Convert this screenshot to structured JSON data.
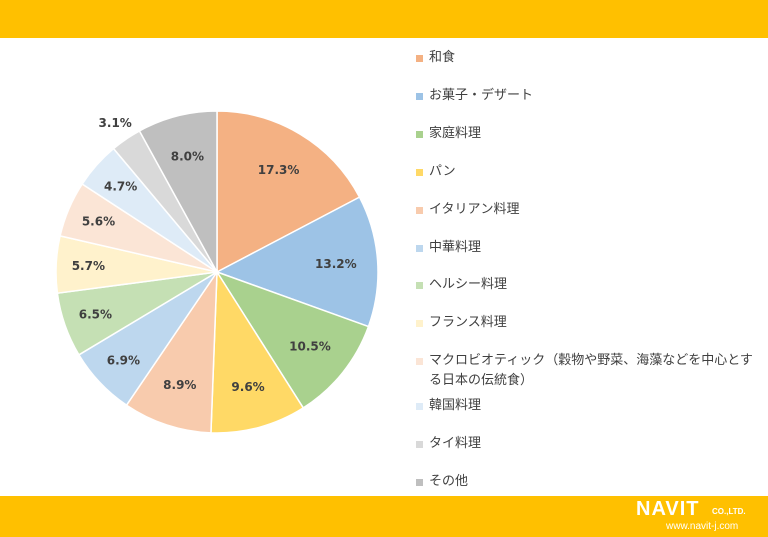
{
  "chart_data": {
    "type": "pie",
    "title": "",
    "legend_position": "right",
    "categories": [
      "和食",
      "お菓子・デザート",
      "家庭料理",
      "パン",
      "イタリアン料理",
      "中華料理",
      "ヘルシー料理",
      "フランス料理",
      "マクロビオティック（穀物や野菜、海藻などを中心とする日本の伝統食）",
      "韓国料理",
      "タイ料理",
      "その他"
    ],
    "values": [
      17.3,
      13.2,
      10.5,
      9.6,
      8.9,
      6.9,
      6.5,
      5.7,
      5.6,
      4.7,
      3.1,
      8.0
    ],
    "labels": [
      "17.3%",
      "13.2%",
      "10.5%",
      "9.6%",
      "8.9%",
      "6.9%",
      "6.5%",
      "5.7%",
      "5.6%",
      "4.7%",
      "3.1%",
      "8.0%"
    ],
    "colors": [
      "#F4B183",
      "#9DC3E6",
      "#A9D18E",
      "#FFD966",
      "#F8CBAD",
      "#BDD7EE",
      "#C5E0B4",
      "#FFF2CC",
      "#FBE5D6",
      "#DEEBF7",
      "#D9D9D9",
      "#BFBFBF"
    ]
  },
  "logo": {
    "brand": "NAVIT",
    "suffix": "CO.,LTD.",
    "url": "www.navit-j.com"
  },
  "theme": {
    "accent": "#FFC000"
  }
}
